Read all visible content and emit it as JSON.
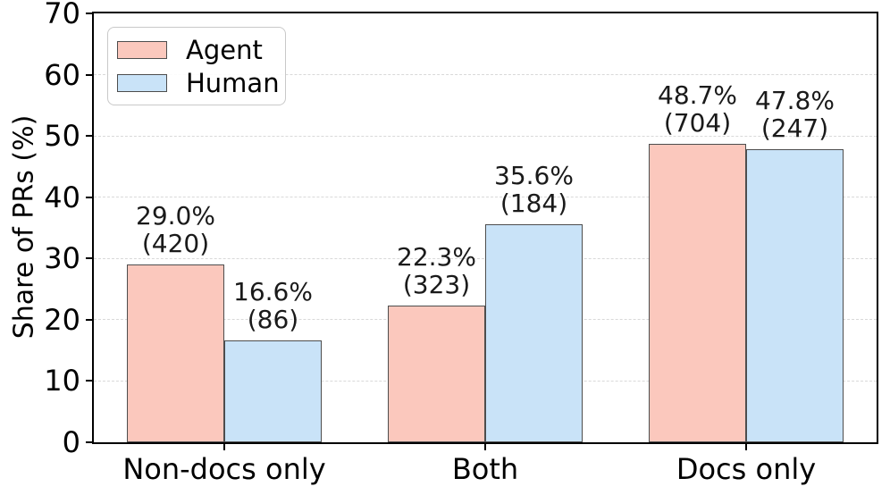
{
  "chart_data": {
    "type": "bar",
    "title": "",
    "xlabel": "",
    "ylabel": "Share of PRs (%)",
    "categories": [
      "Non-docs only",
      "Both",
      "Docs only"
    ],
    "series": [
      {
        "name": "Agent",
        "color": "#fbc8bd",
        "edge_color": "#4d4d4d",
        "values": [
          29.0,
          22.3,
          48.7
        ],
        "counts": [
          420,
          323,
          704
        ],
        "bar_labels": [
          "29.0% (420)",
          "22.3% (323)",
          "48.7% (704)"
        ]
      },
      {
        "name": "Human",
        "color": "#c9e3f8",
        "edge_color": "#4d4d4d",
        "values": [
          16.6,
          35.6,
          47.8
        ],
        "counts": [
          86,
          184,
          247
        ],
        "bar_labels": [
          "16.6% (86)",
          "35.6% (184)",
          "47.8% (247)"
        ]
      }
    ],
    "ylim": [
      0,
      70
    ],
    "yticks": [
      0,
      10,
      20,
      30,
      40,
      50,
      60,
      70
    ],
    "grid": {
      "axis": "y",
      "style": "dashed",
      "color": "#d9d9d9"
    },
    "legend": {
      "position": "upper-left",
      "entries": [
        "Agent",
        "Human"
      ]
    }
  }
}
